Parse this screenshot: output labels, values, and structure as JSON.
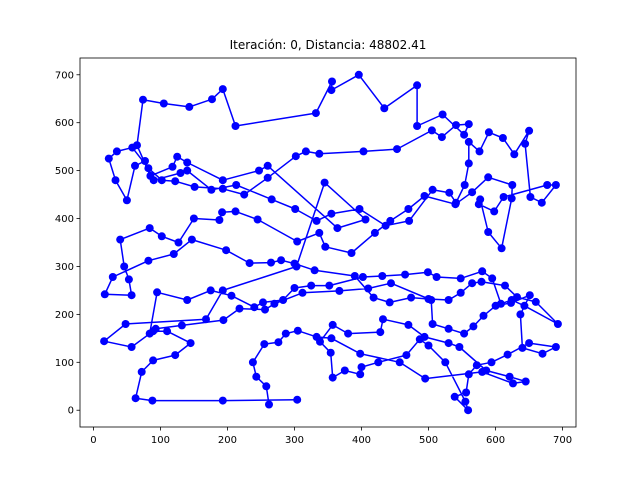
{
  "chart_data": {
    "type": "line",
    "title": "Iteración: 0, Distancia: 48802.41",
    "xlabel": "",
    "ylabel": "",
    "xlim": [
      -20,
      720
    ],
    "ylim": [
      -35,
      735
    ],
    "xticks": [
      0,
      100,
      200,
      300,
      400,
      500,
      600,
      700
    ],
    "yticks": [
      0,
      100,
      200,
      300,
      400,
      500,
      600,
      700
    ],
    "grid": false,
    "series": [
      {
        "color": "#0000ff",
        "marker": "circle",
        "points": [
          [
            304,
            22
          ],
          [
            193,
            20
          ],
          [
            88,
            20
          ],
          [
            63,
            25
          ],
          [
            72,
            80
          ],
          [
            89,
            104
          ],
          [
            122,
            115
          ],
          [
            145,
            140
          ],
          [
            110,
            165
          ],
          [
            89,
            165
          ],
          [
            57,
            132
          ],
          [
            16,
            144
          ],
          [
            48,
            180
          ],
          [
            168,
            190
          ],
          [
            193,
            250
          ],
          [
            303,
            300
          ],
          [
            345,
            475
          ],
          [
            406,
            398
          ],
          [
            364,
            380
          ],
          [
            260,
            510
          ],
          [
            247,
            500
          ],
          [
            193,
            480
          ],
          [
            140,
            517
          ],
          [
            125,
            529
          ],
          [
            118,
            508
          ],
          [
            85,
            489
          ],
          [
            65,
            553
          ],
          [
            74,
            648
          ],
          [
            105,
            640
          ],
          [
            143,
            633
          ],
          [
            177,
            649
          ],
          [
            193,
            670
          ],
          [
            212,
            593
          ],
          [
            332,
            620
          ],
          [
            356,
            686
          ],
          [
            355,
            668
          ],
          [
            396,
            700
          ],
          [
            434,
            630
          ],
          [
            483,
            678
          ],
          [
            483,
            593
          ],
          [
            521,
            617
          ],
          [
            553,
            575
          ],
          [
            560,
            597
          ],
          [
            541,
            595
          ],
          [
            520,
            570
          ],
          [
            505,
            584
          ],
          [
            453,
            545
          ],
          [
            403,
            540
          ],
          [
            337,
            535
          ],
          [
            317,
            540
          ],
          [
            302,
            530
          ],
          [
            260,
            485
          ],
          [
            225,
            450
          ],
          [
            193,
            462
          ],
          [
            151,
            466
          ],
          [
            122,
            478
          ],
          [
            102,
            480
          ],
          [
            82,
            505
          ],
          [
            58,
            548
          ],
          [
            35,
            540
          ],
          [
            23,
            525
          ],
          [
            33,
            480
          ],
          [
            50,
            438
          ],
          [
            62,
            510
          ],
          [
            77,
            520
          ],
          [
            90,
            480
          ],
          [
            130,
            495
          ],
          [
            140,
            500
          ],
          [
            176,
            460
          ],
          [
            213,
            470
          ],
          [
            266,
            440
          ],
          [
            301,
            420
          ],
          [
            333,
            395
          ],
          [
            355,
            410
          ],
          [
            397,
            420
          ],
          [
            436,
            385
          ],
          [
            471,
            395
          ],
          [
            506,
            460
          ],
          [
            531,
            454
          ],
          [
            541,
            433
          ],
          [
            554,
            470
          ],
          [
            560,
            515
          ],
          [
            560,
            560
          ],
          [
            576,
            540
          ],
          [
            590,
            580
          ],
          [
            611,
            568
          ],
          [
            628,
            534
          ],
          [
            650,
            583
          ],
          [
            644,
            556
          ],
          [
            652,
            445
          ],
          [
            669,
            433
          ],
          [
            690,
            470
          ],
          [
            677,
            470
          ],
          [
            612,
            445
          ],
          [
            598,
            415
          ],
          [
            575,
            430
          ],
          [
            577,
            440
          ],
          [
            589,
            372
          ],
          [
            609,
            338
          ],
          [
            624,
            442
          ],
          [
            625,
            470
          ],
          [
            589,
            486
          ],
          [
            565,
            455
          ],
          [
            540,
            430
          ],
          [
            494,
            447
          ],
          [
            470,
            420
          ],
          [
            443,
            395
          ],
          [
            420,
            370
          ],
          [
            385,
            328
          ],
          [
            346,
            341
          ],
          [
            337,
            370
          ],
          [
            304,
            352
          ],
          [
            245,
            398
          ],
          [
            212,
            415
          ],
          [
            192,
            413
          ],
          [
            188,
            397
          ],
          [
            150,
            400
          ],
          [
            127,
            350
          ],
          [
            102,
            363
          ],
          [
            84,
            380
          ],
          [
            40,
            356
          ],
          [
            46,
            300
          ],
          [
            53,
            273
          ],
          [
            57,
            240
          ],
          [
            17,
            242
          ],
          [
            29,
            278
          ],
          [
            82,
            312
          ],
          [
            120,
            326
          ],
          [
            147,
            356
          ],
          [
            198,
            334
          ],
          [
            233,
            307
          ],
          [
            265,
            308
          ],
          [
            280,
            313
          ],
          [
            300,
            306
          ],
          [
            330,
            292
          ],
          [
            390,
            280
          ],
          [
            418,
            235
          ],
          [
            442,
            225
          ],
          [
            474,
            235
          ],
          [
            500,
            232
          ],
          [
            530,
            230
          ],
          [
            548,
            245
          ],
          [
            565,
            265
          ],
          [
            579,
            268
          ],
          [
            614,
            260
          ],
          [
            632,
            236
          ],
          [
            660,
            226
          ],
          [
            693,
            180
          ],
          [
            643,
            218
          ],
          [
            624,
            230
          ],
          [
            608,
            222
          ],
          [
            595,
            275
          ],
          [
            580,
            290
          ],
          [
            548,
            275
          ],
          [
            512,
            278
          ],
          [
            499,
            288
          ],
          [
            465,
            283
          ],
          [
            431,
            280
          ],
          [
            402,
            278
          ],
          [
            352,
            260
          ],
          [
            325,
            260
          ],
          [
            300,
            255
          ],
          [
            283,
            230
          ],
          [
            253,
            225
          ],
          [
            240,
            215
          ],
          [
            206,
            239
          ],
          [
            175,
            250
          ],
          [
            140,
            230
          ],
          [
            95,
            246
          ],
          [
            84,
            160
          ],
          [
            93,
            170
          ],
          [
            132,
            177
          ],
          [
            194,
            188
          ],
          [
            218,
            212
          ],
          [
            256,
            210
          ],
          [
            270,
            222
          ],
          [
            312,
            245
          ],
          [
            367,
            249
          ],
          [
            410,
            254
          ],
          [
            444,
            265
          ],
          [
            504,
            230
          ],
          [
            506,
            180
          ],
          [
            530,
            170
          ],
          [
            553,
            160
          ],
          [
            567,
            175
          ],
          [
            582,
            197
          ],
          [
            600,
            218
          ],
          [
            623,
            224
          ],
          [
            651,
            240
          ],
          [
            637,
            200
          ],
          [
            640,
            130
          ],
          [
            670,
            118
          ],
          [
            690,
            132
          ],
          [
            650,
            140
          ],
          [
            618,
            116
          ],
          [
            594,
            100
          ],
          [
            572,
            94
          ],
          [
            560,
            75
          ],
          [
            556,
            37
          ],
          [
            539,
            28
          ],
          [
            559,
            0
          ],
          [
            555,
            18
          ],
          [
            525,
            100
          ],
          [
            500,
            135
          ],
          [
            487,
            148
          ],
          [
            467,
            115
          ],
          [
            425,
            100
          ],
          [
            400,
            90
          ],
          [
            398,
            75
          ],
          [
            375,
            83
          ],
          [
            357,
            68
          ],
          [
            354,
            120
          ],
          [
            338,
            143
          ],
          [
            357,
            178
          ],
          [
            380,
            160
          ],
          [
            428,
            163
          ],
          [
            432,
            190
          ],
          [
            470,
            178
          ],
          [
            494,
            153
          ],
          [
            530,
            140
          ],
          [
            546,
            132
          ],
          [
            586,
            83
          ],
          [
            621,
            70
          ],
          [
            645,
            60
          ],
          [
            626,
            56
          ],
          [
            580,
            80
          ],
          [
            495,
            66
          ],
          [
            457,
            100
          ],
          [
            398,
            118
          ],
          [
            355,
            150
          ],
          [
            333,
            153
          ],
          [
            305,
            166
          ],
          [
            287,
            160
          ],
          [
            276,
            142
          ],
          [
            255,
            138
          ],
          [
            238,
            100
          ],
          [
            243,
            70
          ],
          [
            258,
            50
          ],
          [
            262,
            12
          ]
        ]
      }
    ]
  }
}
